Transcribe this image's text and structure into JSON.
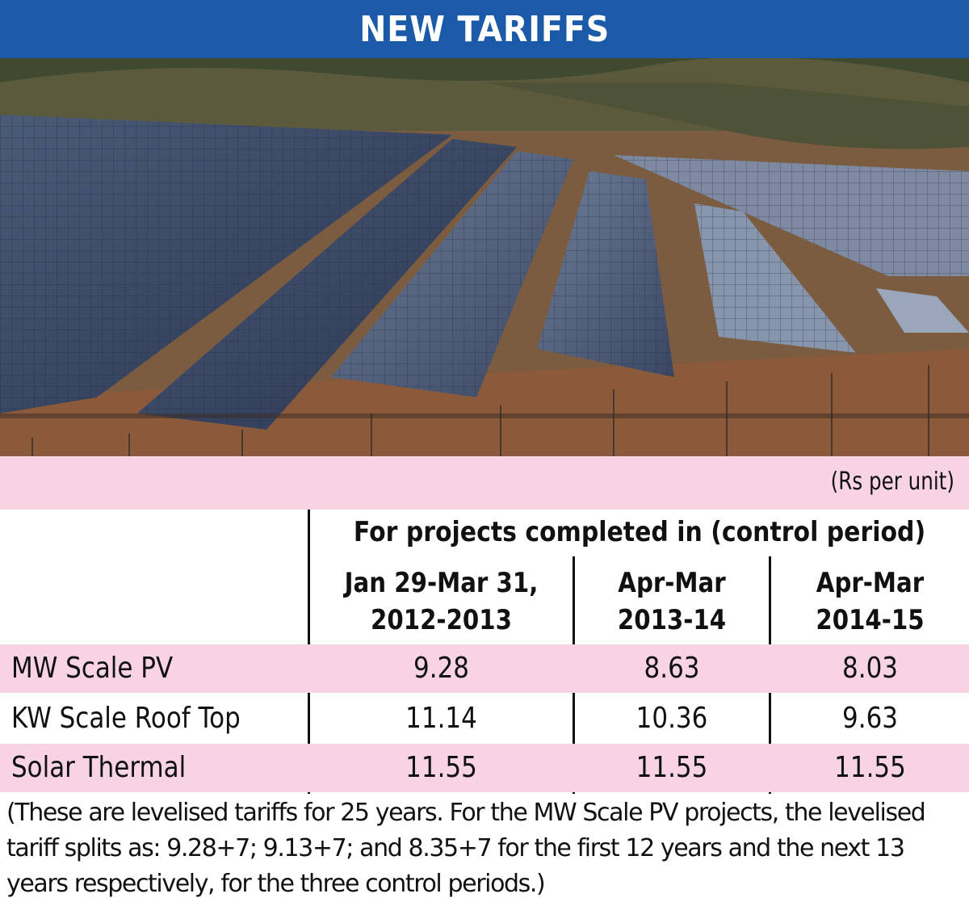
{
  "header": {
    "title": "NEW TARIFFS"
  },
  "photo": {
    "subject": "solar-panel-farm"
  },
  "units": "(Rs per unit)",
  "table": {
    "super_header": "For projects completed in (control period)",
    "columns": [
      {
        "line1": "Jan 29-Mar 31,",
        "line2": "2012-2013"
      },
      {
        "line1": "Apr-Mar",
        "line2": "2013-14"
      },
      {
        "line1": "Apr-Mar",
        "line2": "2014-15"
      }
    ],
    "rows": [
      {
        "label": "MW Scale PV",
        "values": [
          "9.28",
          "8.63",
          "8.03"
        ]
      },
      {
        "label": "KW Scale Roof Top",
        "values": [
          "11.14",
          "10.36",
          "9.63"
        ]
      },
      {
        "label": "Solar Thermal",
        "values": [
          "11.55",
          "11.55",
          "11.55"
        ]
      }
    ]
  },
  "footnote": "(These are levelised tariffs for 25 years. For the MW Scale PV projects, the levelised tariff splits as: 9.28+7; 9.13+7; and 8.35+7 for the first 12 years and the next 13 years respectively, for the three control periods.)",
  "colors": {
    "header_bg": "#1a5aa8",
    "pink_band": "#f7d3e4"
  }
}
